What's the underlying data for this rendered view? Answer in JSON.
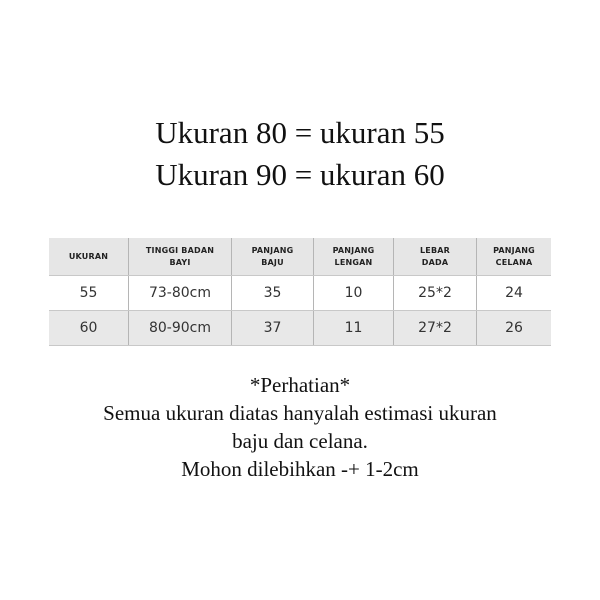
{
  "title_lines": [
    "Ukuran 80 = ukuran 55",
    "Ukuran 90 = ukuran 60"
  ],
  "table": {
    "headers": [
      [
        "UKURAN",
        ""
      ],
      [
        "TINGGI BADAN",
        "BAYI"
      ],
      [
        "PANJANG",
        "BAJU"
      ],
      [
        "PANJANG",
        "LENGAN"
      ],
      [
        "LEBAR",
        "DADA"
      ],
      [
        "PANJANG",
        "CELANA"
      ]
    ],
    "rows": [
      [
        "55",
        "73-80cm",
        "35",
        "10",
        "25*2",
        "24"
      ],
      [
        "60",
        "80-90cm",
        "37",
        "11",
        "27*2",
        "26"
      ]
    ]
  },
  "note": {
    "heading": "*Perhatian*",
    "lines": [
      "Semua ukuran diatas hanyalah estimasi ukuran",
      "baju dan celana.",
      "Mohon dilebihkan -+ 1-2cm"
    ]
  }
}
